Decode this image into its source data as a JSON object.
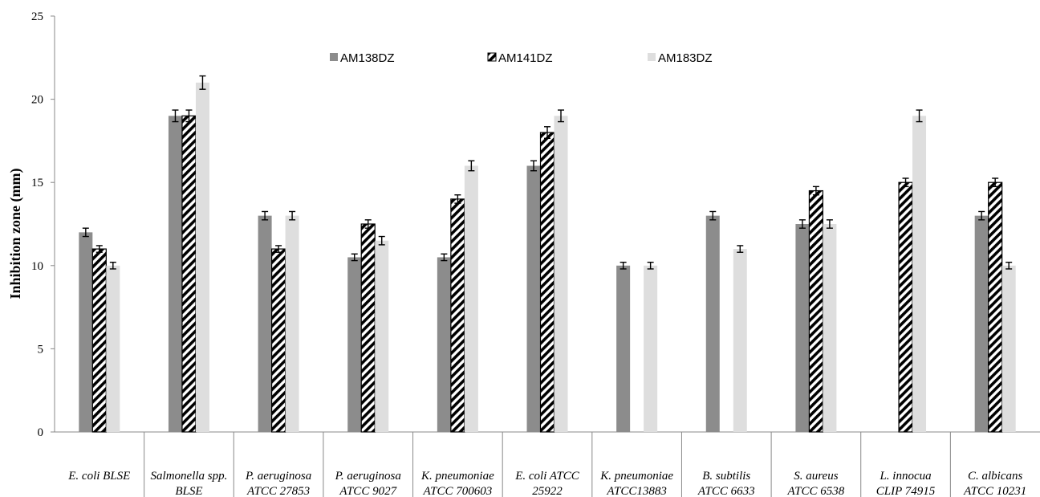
{
  "chart_data": {
    "type": "bar",
    "title": "",
    "xlabel": "",
    "ylabel": "Inhibition zone (mm)",
    "ylim": [
      0,
      25
    ],
    "yticks": [
      0,
      5,
      10,
      15,
      20,
      25
    ],
    "grid": false,
    "legend_position": "top",
    "categories": [
      [
        "E. coli BLSE"
      ],
      [
        "Salmonella spp.",
        "BLSE"
      ],
      [
        "P. aeruginosa",
        "ATCC 27853"
      ],
      [
        "P.  aeruginosa",
        "ATCC 9027"
      ],
      [
        "K. pneumoniae",
        "ATCC 700603"
      ],
      [
        "E. coli ATCC",
        "25922"
      ],
      [
        "K. pneumoniae",
        "ATCC13883"
      ],
      [
        "B. subtilis",
        "ATCC 6633"
      ],
      [
        "S.  aureus",
        "ATCC 6538"
      ],
      [
        "L. innocua",
        "CLIP 74915"
      ],
      [
        "C. albicans",
        "ATCC 10231"
      ]
    ],
    "series": [
      {
        "name": "AM138DZ",
        "color": "#8c8c8c",
        "pattern": "solid",
        "values": [
          12,
          19,
          13,
          10.5,
          10.5,
          16,
          10,
          13,
          12.5,
          0,
          13
        ],
        "errors": [
          0.25,
          0.35,
          0.25,
          0.2,
          0.2,
          0.3,
          0.2,
          0.25,
          0.25,
          0,
          0.25
        ]
      },
      {
        "name": "AM141DZ",
        "color": "#000000",
        "pattern": "diagonal-stripes",
        "values": [
          11,
          19,
          11,
          12.5,
          14,
          18,
          0,
          0,
          14.5,
          15,
          15
        ],
        "errors": [
          0.2,
          0.35,
          0.2,
          0.25,
          0.25,
          0.35,
          0,
          0,
          0.25,
          0.25,
          0.25
        ]
      },
      {
        "name": "AM183DZ",
        "color": "#dedede",
        "pattern": "solid",
        "values": [
          10,
          21,
          13,
          11.5,
          16,
          19,
          10,
          11,
          12.5,
          19,
          10
        ],
        "errors": [
          0.2,
          0.4,
          0.25,
          0.25,
          0.3,
          0.35,
          0.2,
          0.2,
          0.25,
          0.35,
          0.2
        ]
      }
    ]
  }
}
